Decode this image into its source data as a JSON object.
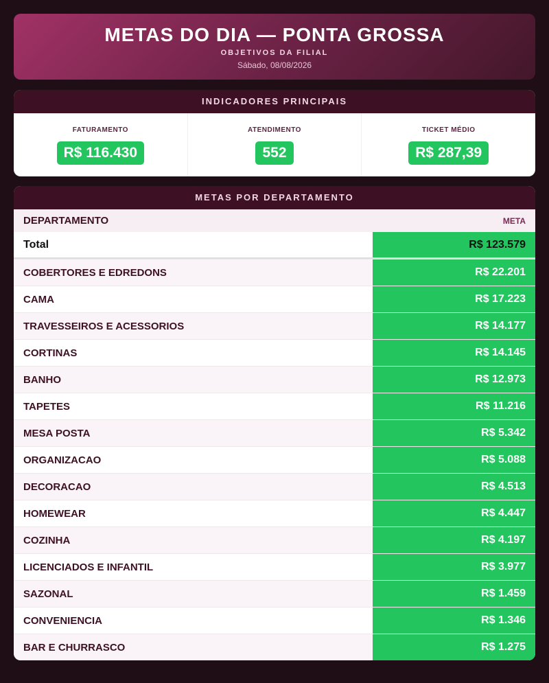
{
  "header": {
    "title": "METAS DO DIA — PONTA GROSSA",
    "subtitle": "OBJETIVOS DA FILIAL",
    "date": "Sábado, 08/08/2026"
  },
  "indicators": {
    "title": "INDICADORES PRINCIPAIS",
    "items": [
      {
        "label": "FATURAMENTO",
        "value": "R$ 116.430"
      },
      {
        "label": "ATENDIMENTO",
        "value": "552"
      },
      {
        "label": "TICKET MÉDIO",
        "value": "R$ 287,39"
      }
    ]
  },
  "departments": {
    "title": "METAS POR DEPARTAMENTO",
    "columns": [
      "DEPARTAMENTO",
      "META"
    ],
    "total": {
      "label": "Total",
      "value": "R$ 123.579"
    },
    "rows": [
      [
        "COBERTORES E EDREDONS",
        "R$ 22.201"
      ],
      [
        "CAMA",
        "R$ 17.223"
      ],
      [
        "TRAVESSEIROS E ACESSORIOS",
        "R$ 14.177"
      ],
      [
        "CORTINAS",
        "R$ 14.145"
      ],
      [
        "BANHO",
        "R$ 12.973"
      ],
      [
        "TAPETES",
        "R$ 11.216"
      ],
      [
        "MESA POSTA",
        "R$ 5.342"
      ],
      [
        "ORGANIZACAO",
        "R$ 5.088"
      ],
      [
        "DECORACAO",
        "R$ 4.513"
      ],
      [
        "HOMEWEAR",
        "R$ 4.447"
      ],
      [
        "COZINHA",
        "R$ 4.197"
      ],
      [
        "LICENCIADOS E INFANTIL",
        "R$ 3.977"
      ],
      [
        "SAZONAL",
        "R$ 1.459"
      ],
      [
        "CONVENIENCIA",
        "R$ 1.346"
      ],
      [
        "BAR E CHURRASCO",
        "R$ 1.275"
      ]
    ]
  }
}
